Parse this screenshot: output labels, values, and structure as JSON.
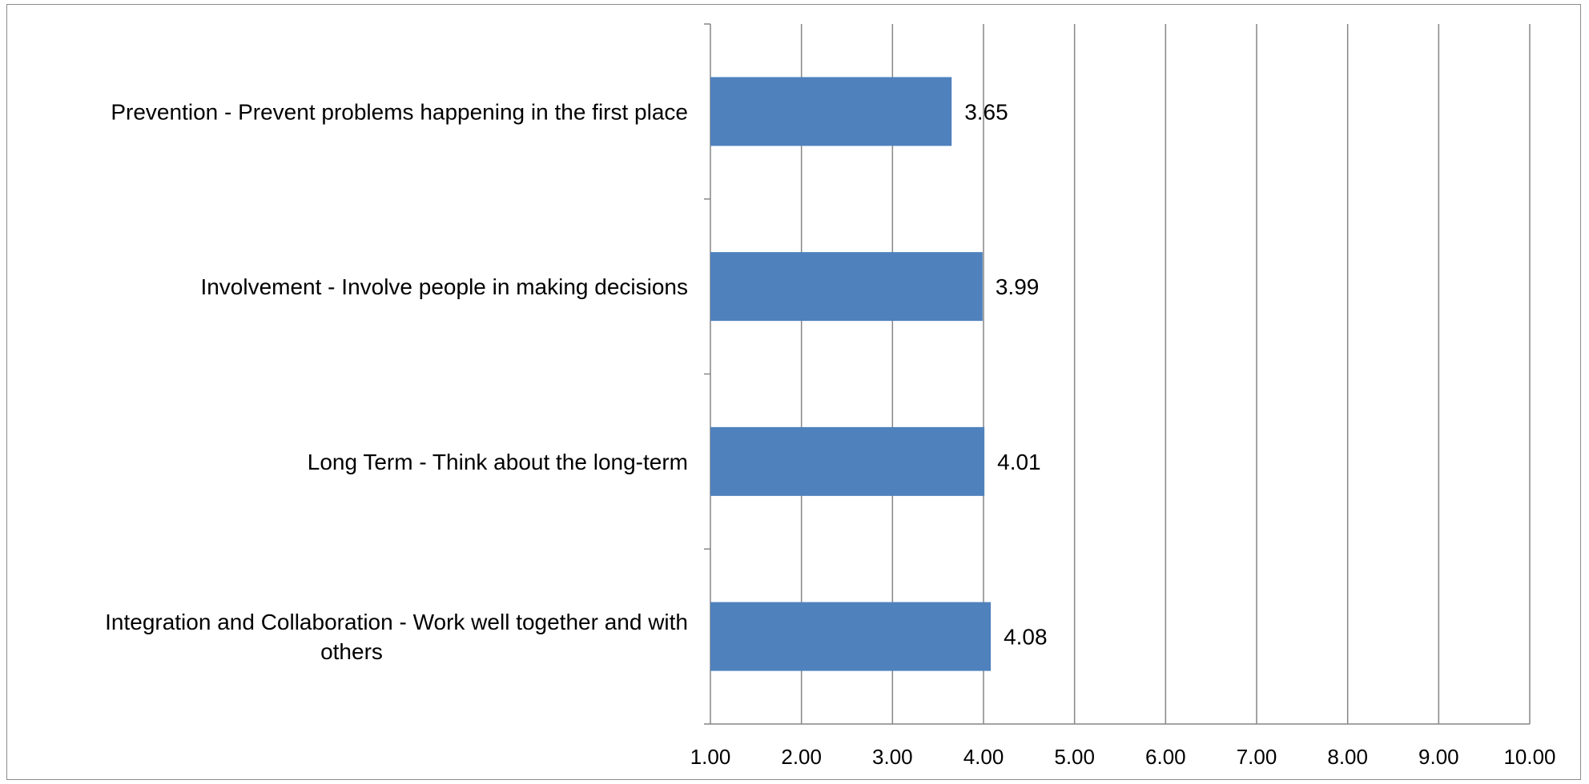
{
  "chart_data": {
    "type": "bar",
    "orientation": "horizontal",
    "categories": [
      [
        "Prevention - Prevent problems happening in the first place"
      ],
      [
        "Involvement - Involve people in making decisions"
      ],
      [
        "Long Term - Think about the long-term"
      ],
      [
        "Integration and Collaboration - Work well together and with",
        "others"
      ]
    ],
    "values": [
      3.65,
      3.99,
      4.01,
      4.08
    ],
    "value_labels": [
      "3.65",
      "3.99",
      "4.01",
      "4.08"
    ],
    "xlim": [
      1,
      10
    ],
    "x_ticks": [
      1,
      2,
      3,
      4,
      5,
      6,
      7,
      8,
      9,
      10
    ],
    "x_tick_labels": [
      "1.00",
      "2.00",
      "3.00",
      "4.00",
      "5.00",
      "6.00",
      "7.00",
      "8.00",
      "9.00",
      "10.00"
    ],
    "grid": "vertical",
    "legend": "none",
    "bar_color": "#4F81BD",
    "grid_color": "#868686",
    "title": "",
    "xlabel": "",
    "ylabel": ""
  }
}
